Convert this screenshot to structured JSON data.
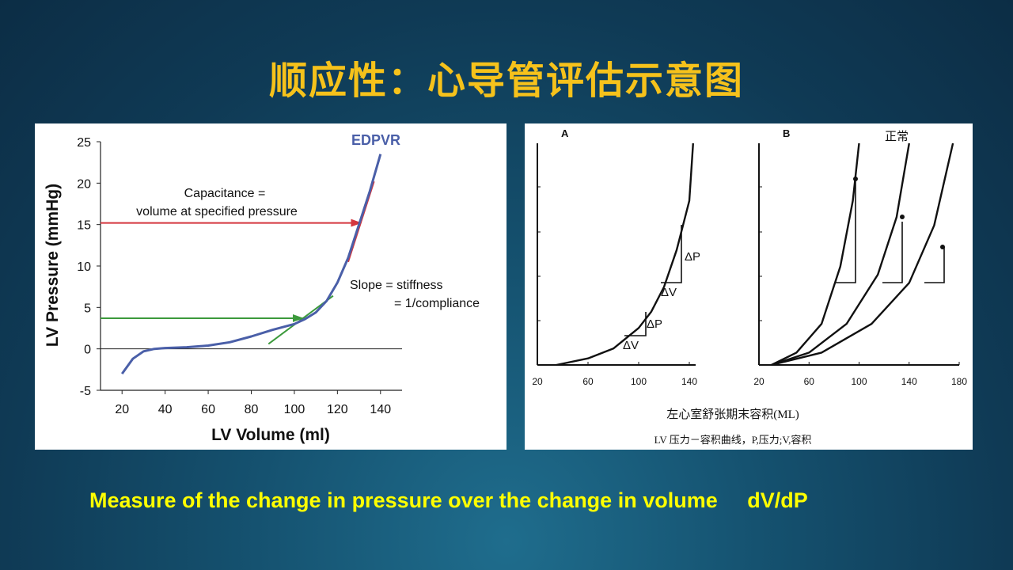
{
  "slide": {
    "title": "顺应性：心导管评估示意图",
    "caption": "Measure of the change in pressure over the change in volume     dV/dP"
  },
  "left_figure": {
    "curve_label": "EDPVR",
    "capacitance_line1": "Capacitance =",
    "capacitance_line2": "volume at specified pressure",
    "slope_line1": "Slope = stiffness",
    "slope_line2": "= 1/compliance",
    "colors": {
      "curve": "#4a5fa8",
      "red_arrow": "#d4363e",
      "green_arrow": "#3c9a3c"
    },
    "chart_data": {
      "type": "line",
      "xlabel": "LV Volume (ml)",
      "ylabel": "LV Pressure (mmHg)",
      "xlim": [
        10,
        150
      ],
      "ylim": [
        -5,
        25
      ],
      "x_ticks": [
        "20",
        "40",
        "60",
        "80",
        "100",
        "120",
        "140"
      ],
      "y_ticks": [
        "-5",
        "0",
        "5",
        "10",
        "15",
        "20",
        "25"
      ],
      "series": [
        {
          "name": "EDPVR",
          "x": [
            20,
            25,
            30,
            35,
            40,
            50,
            60,
            70,
            80,
            90,
            100,
            105,
            110,
            115,
            120,
            125,
            130,
            135,
            140
          ],
          "y": [
            -3,
            -1.2,
            -0.3,
            0,
            0.1,
            0.2,
            0.4,
            0.8,
            1.5,
            2.3,
            3,
            3.6,
            4.4,
            5.8,
            8,
            11,
            15,
            19,
            23.5
          ]
        }
      ],
      "annotations": [
        {
          "type": "arrow",
          "from": [
            10,
            15.2
          ],
          "to": [
            131,
            15.2
          ]
        },
        {
          "type": "tangent",
          "from": [
            125,
            10.5
          ],
          "to": [
            137,
            20.2
          ]
        },
        {
          "type": "arrow",
          "from": [
            10,
            3.7
          ],
          "to": [
            104,
            3.7
          ]
        },
        {
          "type": "tangent",
          "from": [
            88,
            0.6
          ],
          "to": [
            118,
            6.4
          ]
        }
      ]
    }
  },
  "right_figure": {
    "panel_a_label": "A",
    "panel_b_label": "B",
    "normal_label": "正常",
    "delta_p": "ΔP",
    "delta_v": "ΔV",
    "xlabel": "左心室舒张期末容积(ML)",
    "caption": "LV 压力－容积曲线，P,压力;V,容积",
    "chart_data": [
      {
        "type": "line",
        "panel": "A",
        "x_ticks": [
          "20",
          "60",
          "100",
          "140"
        ],
        "xlim": [
          20,
          145
        ],
        "series": [
          {
            "x": [
              35,
              60,
              80,
              100,
              110,
              120,
              130,
              140,
              143
            ],
            "y": [
              0,
              0.8,
              2,
              4.5,
              6.5,
              9.5,
              14,
              20,
              27
            ]
          }
        ]
      },
      {
        "type": "line",
        "panel": "B",
        "x_ticks": [
          "20",
          "60",
          "100",
          "140",
          "180"
        ],
        "xlim": [
          20,
          180
        ],
        "series": [
          {
            "x": [
              30,
              50,
              70,
              85,
              95,
              100
            ],
            "y": [
              0,
              1.5,
              5,
              12,
              20,
              27
            ]
          },
          {
            "x": [
              30,
              60,
              90,
              115,
              130,
              140
            ],
            "y": [
              0,
              1.5,
              5,
              11,
              18,
              27
            ]
          },
          {
            "x": [
              30,
              70,
              110,
              140,
              160,
              175
            ],
            "y": [
              0,
              1.5,
              5,
              10,
              17,
              27
            ]
          }
        ]
      }
    ]
  }
}
